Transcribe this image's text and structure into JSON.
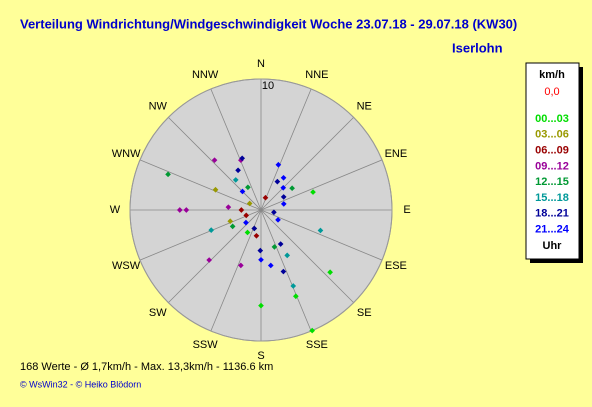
{
  "chart_data": {
    "type": "polar-scatter",
    "title": "Verteilung Windrichtung/Windgeschwindigkeit  Woche 23.07.18 - 29.07.18 (KW30)",
    "subtitle": "Iserlohn",
    "directions": [
      "N",
      "NNE",
      "NE",
      "ENE",
      "E",
      "ESE",
      "SE",
      "SSE",
      "S",
      "SSW",
      "SW",
      "WSW",
      "W",
      "WNW",
      "NW",
      "NNW"
    ],
    "rlim": [
      0,
      10
    ],
    "rticks": [
      10
    ],
    "legend": {
      "unit": "km/h",
      "calm": "0,0",
      "footer": "Uhr"
    },
    "series": [
      {
        "name": "00...03",
        "color": "#00dd00",
        "x": [
          157,
          180,
          158,
          71,
          132,
          211
        ],
        "values": [
          10,
          7.3,
          7.1,
          4.2,
          7.1,
          2.0
        ]
      },
      {
        "name": "03...06",
        "color": "#999900",
        "x": [
          294,
          250,
          200,
          300
        ],
        "values": [
          3.8,
          2.5,
          1.5,
          1.0
        ]
      },
      {
        "name": "06...09",
        "color": "#990000",
        "x": [
          270,
          250,
          190,
          20
        ],
        "values": [
          1.5,
          1.2,
          2.0,
          1.0
        ]
      },
      {
        "name": "09...12",
        "color": "#990099",
        "x": [
          338,
          317,
          270,
          270,
          226,
          275,
          200
        ],
        "values": [
          4.1,
          5.2,
          6.2,
          5.7,
          5.5,
          2.5,
          4.5
        ]
      },
      {
        "name": "12...15",
        "color": "#009933",
        "x": [
          291,
          55,
          160,
          330,
          240
        ],
        "values": [
          7.6,
          2.9,
          3.0,
          2.0,
          2.5
        ]
      },
      {
        "name": "15...18",
        "color": "#009999",
        "x": [
          157,
          109,
          248,
          150,
          320
        ],
        "values": [
          6.3,
          4.8,
          4.1,
          4.0,
          3.0
        ]
      },
      {
        "name": "18...21",
        "color": "#000099",
        "x": [
          181,
          340,
          330,
          160,
          150,
          30,
          60,
          200,
          100
        ],
        "values": [
          3.1,
          4.2,
          3.5,
          5.0,
          3.0,
          2.5,
          2.0,
          1.5,
          1.0
        ]
      },
      {
        "name": "21...24",
        "color": "#0000ff",
        "x": [
          180,
          21,
          45,
          35,
          75,
          120,
          170,
          230,
          315
        ],
        "values": [
          3.8,
          3.7,
          2.4,
          3.0,
          1.8,
          1.5,
          4.3,
          1.5,
          2.0
        ]
      }
    ],
    "summary": "168 Werte  -  Ø 1,7km/h  -  Max. 13,3km/h  -  1136.6 km",
    "credits": "© WsWin32  -  © Heiko Blödorn"
  }
}
